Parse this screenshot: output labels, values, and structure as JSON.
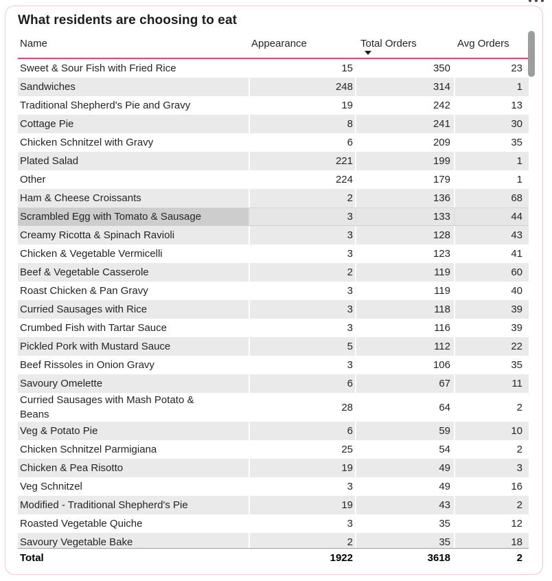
{
  "card": {
    "title": "What residents are choosing to eat",
    "more_options_icon": "ellipsis-icon"
  },
  "colors": {
    "accent_underline": "#E2476F",
    "card_border": "#EFC9D5",
    "stripe": "#EAEAEA",
    "highlight_row": "#E6E6E6",
    "highlight_name_cell": "#CDCDCD",
    "scrollbar_thumb": "#9D9D9D",
    "text": "#252423"
  },
  "table": {
    "columns": [
      "Name",
      "Appearance",
      "Total Orders",
      "Avg Orders"
    ],
    "sort": {
      "column": "Total Orders",
      "direction": "descending"
    },
    "rows": [
      {
        "name": "Sweet & Sour Fish with Fried Rice",
        "appearance": "15",
        "total_orders": "350",
        "avg_orders": "23"
      },
      {
        "name": "Sandwiches",
        "appearance": "248",
        "total_orders": "314",
        "avg_orders": "1"
      },
      {
        "name": "Traditional Shepherd's Pie and Gravy",
        "appearance": "19",
        "total_orders": "242",
        "avg_orders": "13"
      },
      {
        "name": "Cottage Pie",
        "appearance": "8",
        "total_orders": "241",
        "avg_orders": "30"
      },
      {
        "name": "Chicken Schnitzel with Gravy",
        "appearance": "6",
        "total_orders": "209",
        "avg_orders": "35"
      },
      {
        "name": "Plated Salad",
        "appearance": "221",
        "total_orders": "199",
        "avg_orders": "1"
      },
      {
        "name": "Other",
        "appearance": "224",
        "total_orders": "179",
        "avg_orders": "1"
      },
      {
        "name": "Ham & Cheese Croissants",
        "appearance": "2",
        "total_orders": "136",
        "avg_orders": "68"
      },
      {
        "name": "Scrambled Egg with Tomato & Sausage",
        "appearance": "3",
        "total_orders": "133",
        "avg_orders": "44",
        "highlighted": true
      },
      {
        "name": "Creamy Ricotta & Spinach Ravioli",
        "appearance": "3",
        "total_orders": "128",
        "avg_orders": "43"
      },
      {
        "name": "Chicken & Vegetable Vermicelli",
        "appearance": "3",
        "total_orders": "123",
        "avg_orders": "41"
      },
      {
        "name": "Beef & Vegetable Casserole",
        "appearance": "2",
        "total_orders": "119",
        "avg_orders": "60"
      },
      {
        "name": "Roast Chicken & Pan Gravy",
        "appearance": "3",
        "total_orders": "119",
        "avg_orders": "40"
      },
      {
        "name": "Curried Sausages with Rice",
        "appearance": "3",
        "total_orders": "118",
        "avg_orders": "39"
      },
      {
        "name": "Crumbed Fish with Tartar Sauce",
        "appearance": "3",
        "total_orders": "116",
        "avg_orders": "39"
      },
      {
        "name": "Pickled Pork with Mustard Sauce",
        "appearance": "5",
        "total_orders": "112",
        "avg_orders": "22"
      },
      {
        "name": "Beef Rissoles in Onion Gravy",
        "appearance": "3",
        "total_orders": "106",
        "avg_orders": "35"
      },
      {
        "name": "Savoury Omelette",
        "appearance": "6",
        "total_orders": "67",
        "avg_orders": "11"
      },
      {
        "name": "Curried Sausages with Mash Potato & Beans",
        "appearance": "28",
        "total_orders": "64",
        "avg_orders": "2"
      },
      {
        "name": "Veg & Potato Pie",
        "appearance": "6",
        "total_orders": "59",
        "avg_orders": "10"
      },
      {
        "name": "Chicken Schnitzel Parmigiana",
        "appearance": "25",
        "total_orders": "54",
        "avg_orders": "2"
      },
      {
        "name": "Chicken & Pea Risotto",
        "appearance": "19",
        "total_orders": "49",
        "avg_orders": "3"
      },
      {
        "name": "Veg Schnitzel",
        "appearance": "3",
        "total_orders": "49",
        "avg_orders": "16"
      },
      {
        "name": "Modified - Traditional Shepherd's Pie",
        "appearance": "19",
        "total_orders": "43",
        "avg_orders": "2"
      },
      {
        "name": "Roasted Vegetable Quiche",
        "appearance": "3",
        "total_orders": "35",
        "avg_orders": "12"
      },
      {
        "name": "Savoury Vegetable Bake",
        "appearance": "2",
        "total_orders": "35",
        "avg_orders": "18"
      }
    ],
    "total": {
      "label": "Total",
      "appearance": "1922",
      "total_orders": "3618",
      "avg_orders": "2"
    }
  }
}
